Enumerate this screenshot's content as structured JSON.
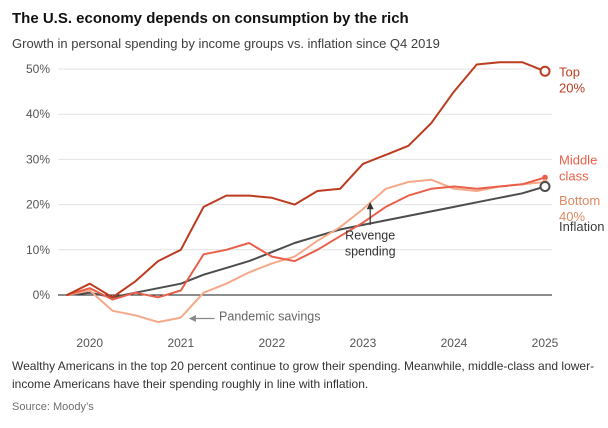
{
  "header": {
    "title": "The U.S. economy depends on consumption by the rich",
    "subtitle": "Growth in personal spending by income groups vs. inflation since Q4 2019"
  },
  "chart_data": {
    "type": "line",
    "x_unit": "year (quarterly points since Q4 2019)",
    "x": [
      2019.75,
      2020,
      2020.25,
      2020.5,
      2020.75,
      2021,
      2021.25,
      2021.5,
      2021.75,
      2022,
      2022.25,
      2022.5,
      2022.75,
      2023,
      2023.25,
      2023.5,
      2023.75,
      2024,
      2024.25,
      2024.5,
      2024.75,
      2025
    ],
    "series": [
      {
        "name": "Top 20%",
        "label_lines": [
          "Top",
          "20%"
        ],
        "color": "#bc3c1f",
        "label_color": "#bc3c1f",
        "label_y_pct": 49.5,
        "end_marker": "open-circle",
        "values": [
          0,
          2.5,
          -0.5,
          3,
          7.5,
          10,
          19.5,
          22,
          22,
          21.5,
          20,
          23,
          23.5,
          29,
          31,
          33,
          38,
          45,
          51,
          51.5,
          51.5,
          49.5
        ]
      },
      {
        "name": "Middle class",
        "label_lines": [
          "Middle",
          "class"
        ],
        "color": "#e8604a",
        "label_color": "#e8604a",
        "label_y_pct": 30,
        "end_marker": "dot",
        "values": [
          0,
          1.5,
          -1,
          0.5,
          -0.5,
          1,
          9,
          10,
          11.5,
          8.5,
          7.5,
          10,
          13,
          16,
          19.5,
          22,
          23.5,
          24,
          23.5,
          24,
          24.5,
          26
        ]
      },
      {
        "name": "Bottom 40%",
        "label_lines": [
          "Bottom",
          "40%"
        ],
        "color": "#f5a988",
        "label_color": "#dd8a63",
        "label_y_pct": 21,
        "end_marker": "dot",
        "values": [
          0,
          1,
          -3.5,
          -4.5,
          -6,
          -5,
          0.5,
          2.5,
          5,
          7,
          8.5,
          12,
          15,
          19,
          23.5,
          25,
          25.5,
          23.5,
          23,
          24,
          24.5,
          25
        ]
      },
      {
        "name": "Inflation",
        "label_lines": [
          "Inflation"
        ],
        "color": "#4d4d4d",
        "label_color": "#3d3d3d",
        "label_y_pct": 15.3,
        "end_marker": "open-circle",
        "values": [
          0,
          0.5,
          -0.5,
          0.5,
          1.5,
          2.5,
          4.5,
          6,
          7.5,
          9.5,
          11.5,
          13,
          14.5,
          15.5,
          16.5,
          17.5,
          18.5,
          19.5,
          20.5,
          21.5,
          22.5,
          24
        ]
      }
    ],
    "ylim": [
      -8,
      55
    ],
    "yticks": [
      0,
      10,
      20,
      30,
      40,
      50
    ],
    "ytick_labels": [
      "0%",
      "10%",
      "20%",
      "30%",
      "40%",
      "50%"
    ],
    "xticks": [
      2020,
      2021,
      2022,
      2023,
      2024,
      2025
    ],
    "xtick_labels": [
      "2020",
      "2021",
      "2022",
      "2023",
      "2024",
      "2025"
    ],
    "grid": "horizontal",
    "legend_position": "right-edge-labels",
    "colors": {
      "grid": "#e2e2e2",
      "zero_line": "#1a1a1a",
      "tick_text": "#555555"
    },
    "annotations": [
      {
        "id": "revenge-spending",
        "text_lines": [
          "Revenge",
          "spending"
        ],
        "align": "middle",
        "color": "#333333",
        "tx": 2023.08,
        "ty_pct": 12.3,
        "arrow": {
          "color": "#333333",
          "from_t": 2023.08,
          "from_pct": 15.5,
          "to_t": 2023.08,
          "to_pct": 20.3,
          "dir": "up"
        }
      },
      {
        "id": "pandemic-savings",
        "text_lines": [
          "Pandemic savings"
        ],
        "align": "start",
        "color": "#666666",
        "tx": 2021.42,
        "ty_pct": -5.6,
        "arrow": {
          "color": "#888888",
          "from_t": 2021.37,
          "from_pct": -5.2,
          "to_t": 2021.1,
          "to_pct": -5.2,
          "dir": "left"
        }
      }
    ]
  },
  "caption": "Wealthy Americans in the top 20 percent continue to grow their spending. Meanwhile, middle-class and lower-income Americans have their spending roughly in line with inflation.",
  "source": "Source: Moody’s"
}
